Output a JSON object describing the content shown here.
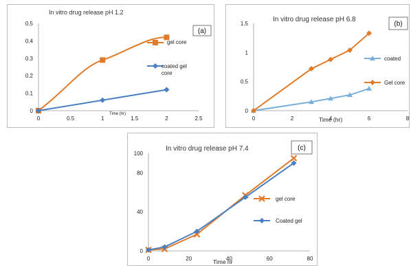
{
  "colors": {
    "orange": "#E07B2A",
    "blue": "#4A7FC1",
    "light_blue": "#7AAFD8"
  },
  "chart_data": [
    {
      "id": "a",
      "type": "line",
      "panel_label": "(a)",
      "title": "In vitro drug release pH 1.2",
      "xlabel": "Time (hr)",
      "ylabel": "",
      "xlim": [
        0,
        2.5
      ],
      "ylim": [
        0,
        0.5
      ],
      "x_ticks": [
        "0",
        "0.5",
        "1",
        "1.5",
        "2",
        "2.5"
      ],
      "y_ticks": [
        "0",
        "0.1",
        "0.2",
        "0.3",
        "0.4",
        "0.5"
      ],
      "series": [
        {
          "name": "gel core",
          "color": "#E07B2A",
          "marker": "square",
          "x": [
            0,
            1,
            2
          ],
          "y": [
            0,
            0.29,
            0.42
          ]
        },
        {
          "name": "coated gel core",
          "color": "#4A7FC1",
          "marker": "diamond",
          "x": [
            0,
            1,
            2
          ],
          "y": [
            0,
            0.06,
            0.12
          ]
        }
      ],
      "legend": [
        "gel core",
        "coated gel core"
      ]
    },
    {
      "id": "b",
      "type": "line",
      "panel_label": "(b)",
      "title": "In vitro drug release pH 6.8",
      "xlabel": "Time (hr)",
      "ylabel": "",
      "xlim": [
        0,
        8
      ],
      "ylim": [
        0,
        1.5
      ],
      "x_ticks": [
        "0",
        "2",
        "4",
        "6",
        "8"
      ],
      "y_ticks": [
        "0",
        "0.5",
        "1",
        "1.5"
      ],
      "series": [
        {
          "name": "coated gel",
          "color": "#7AAFD8",
          "marker": "triangle",
          "x": [
            0,
            3,
            4,
            5,
            6
          ],
          "y": [
            0,
            0.15,
            0.21,
            0.27,
            0.38
          ]
        },
        {
          "name": "Gel core",
          "color": "#E07B2A",
          "marker": "diamond",
          "x": [
            0,
            3,
            4,
            5,
            6
          ],
          "y": [
            0,
            0.72,
            0.88,
            1.04,
            1.33
          ]
        }
      ],
      "legend": [
        "coated",
        "Gel core"
      ]
    },
    {
      "id": "c",
      "type": "line",
      "panel_label": "(c)",
      "title": "In vitro drug release pH 7.4",
      "xlabel": "Time hr",
      "ylabel": "",
      "xlim": [
        0,
        80
      ],
      "ylim": [
        0,
        100
      ],
      "x_ticks": [
        "0",
        "20",
        "40",
        "60",
        "80"
      ],
      "y_ticks": [
        "0",
        "40",
        "80",
        "100"
      ],
      "series": [
        {
          "name": "gel core",
          "color": "#E07B2A",
          "marker": "x",
          "x": [
            0,
            8,
            24,
            48,
            72
          ],
          "y": [
            1,
            2,
            17,
            57,
            95
          ]
        },
        {
          "name": "Coated gel",
          "color": "#4A7FC1",
          "marker": "diamond",
          "x": [
            0,
            8,
            24,
            48,
            72
          ],
          "y": [
            1,
            4,
            20,
            55,
            90
          ]
        }
      ],
      "legend": [
        "gel core",
        "Coated gel"
      ]
    }
  ]
}
